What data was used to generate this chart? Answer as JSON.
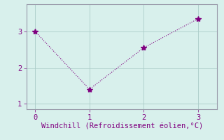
{
  "x": [
    0,
    1,
    2,
    3
  ],
  "y": [
    3.0,
    1.4,
    2.55,
    3.35
  ],
  "line_color": "#800080",
  "marker": "*",
  "marker_size": 6,
  "bg_color": "#d8f0ec",
  "grid_color": "#aaccc8",
  "xlabel": "Windchill (Refroidissement éolien,°C)",
  "xlabel_color": "#800080",
  "tick_color": "#800080",
  "spine_color": "#9999aa",
  "xlim": [
    -0.15,
    3.35
  ],
  "ylim": [
    0.85,
    3.75
  ],
  "xticks": [
    0,
    1,
    2,
    3
  ],
  "yticks": [
    1,
    2,
    3
  ],
  "xlabel_fontsize": 7.5,
  "tick_fontsize": 7.5
}
